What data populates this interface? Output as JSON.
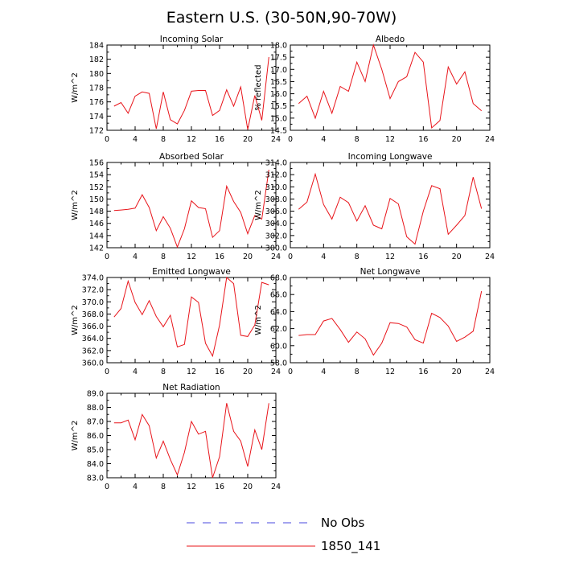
{
  "title": "Eastern U.S. (30-50N,90-70W)",
  "legend": [
    {
      "label": "No Obs",
      "color": "#4a4adf",
      "dash": true
    },
    {
      "label": "1850_141",
      "color": "#e8141a",
      "dash": false
    }
  ],
  "chart_data": [
    {
      "type": "line",
      "title": "Incoming Solar",
      "ylabel": "W/m^2",
      "xlim": [
        0,
        24
      ],
      "xticks": [
        0,
        4,
        8,
        12,
        16,
        20,
        24
      ],
      "ylim": [
        172,
        184
      ],
      "yticks": [
        172,
        174,
        176,
        178,
        180,
        182,
        184
      ],
      "ytick_labels": [
        "172",
        "174",
        "176",
        "178",
        "180",
        "182",
        "184"
      ],
      "x": [
        1,
        2,
        3,
        4,
        5,
        6,
        7,
        8,
        9,
        10,
        11,
        12,
        13,
        14,
        15,
        16,
        17,
        18,
        19,
        20,
        21,
        22,
        23
      ],
      "series": [
        {
          "name": "1850_141",
          "values": [
            175.4,
            175.9,
            174.4,
            176.8,
            177.4,
            177.2,
            172.2,
            177.4,
            173.5,
            172.9,
            174.8,
            177.5,
            177.6,
            177.6,
            174.1,
            174.8,
            177.7,
            175.4,
            178.1,
            172.1,
            176.9,
            173.4,
            182.3
          ]
        }
      ]
    },
    {
      "type": "line",
      "title": "Albedo",
      "ylabel": "% reflected",
      "xlim": [
        0,
        24
      ],
      "xticks": [
        0,
        4,
        8,
        12,
        16,
        20,
        24
      ],
      "ylim": [
        14.5,
        18.0
      ],
      "yticks": [
        14.5,
        15.0,
        15.5,
        16.0,
        16.5,
        17.0,
        17.5,
        18.0
      ],
      "ytick_labels": [
        "14.5",
        "15.0",
        "15.5",
        "16.0",
        "16.5",
        "17.0",
        "17.5",
        "18.0"
      ],
      "x": [
        1,
        2,
        3,
        4,
        5,
        6,
        7,
        8,
        9,
        10,
        11,
        12,
        13,
        14,
        15,
        16,
        17,
        18,
        19,
        20,
        21,
        22,
        23
      ],
      "series": [
        {
          "name": "1850_141",
          "values": [
            15.6,
            15.9,
            15.0,
            16.1,
            15.2,
            16.3,
            16.1,
            17.3,
            16.5,
            18.0,
            17.0,
            15.8,
            16.5,
            16.7,
            17.7,
            17.3,
            14.6,
            14.9,
            17.1,
            16.4,
            16.9,
            15.6,
            15.3
          ]
        }
      ]
    },
    {
      "type": "line",
      "title": "Absorbed Solar",
      "ylabel": "W/m^2",
      "xlim": [
        0,
        24
      ],
      "xticks": [
        0,
        4,
        8,
        12,
        16,
        20,
        24
      ],
      "ylim": [
        142,
        156
      ],
      "yticks": [
        142,
        144,
        146,
        148,
        150,
        152,
        154,
        156
      ],
      "ytick_labels": [
        "142",
        "144",
        "146",
        "148",
        "150",
        "152",
        "154",
        "156"
      ],
      "x": [
        1,
        2,
        3,
        4,
        5,
        6,
        7,
        8,
        9,
        10,
        11,
        12,
        13,
        14,
        15,
        16,
        17,
        18,
        19,
        20,
        21,
        22,
        23
      ],
      "series": [
        {
          "name": "1850_141",
          "values": [
            148.1,
            148.2,
            148.3,
            148.5,
            150.7,
            148.6,
            144.8,
            147.1,
            145.2,
            142.1,
            145.1,
            149.7,
            148.6,
            148.4,
            143.7,
            144.8,
            152.1,
            149.6,
            147.8,
            144.3,
            147.3,
            146.7,
            154.8
          ]
        }
      ]
    },
    {
      "type": "line",
      "title": "Incoming Longwave",
      "ylabel": "W/m^2",
      "xlim": [
        0,
        24
      ],
      "xticks": [
        0,
        4,
        8,
        12,
        16,
        20,
        24
      ],
      "ylim": [
        300,
        314
      ],
      "yticks": [
        300,
        302,
        304,
        306,
        308,
        310,
        312,
        314
      ],
      "ytick_labels": [
        "300.0",
        "302.0",
        "304.0",
        "306.0",
        "308.0",
        "310.0",
        "312.0",
        "314.0"
      ],
      "x": [
        1,
        2,
        3,
        4,
        5,
        6,
        7,
        8,
        9,
        10,
        11,
        12,
        13,
        14,
        15,
        16,
        17,
        18,
        19,
        20,
        21,
        22,
        23
      ],
      "series": [
        {
          "name": "1850_141",
          "values": [
            306.3,
            307.5,
            312.1,
            307.1,
            304.7,
            308.3,
            307.4,
            304.4,
            306.9,
            303.7,
            303.1,
            308.1,
            307.2,
            301.8,
            300.6,
            306.0,
            310.2,
            309.7,
            302.2,
            303.7,
            305.3,
            311.6,
            306.4
          ]
        }
      ]
    },
    {
      "type": "line",
      "title": "Emitted Longwave",
      "ylabel": "W/m^2",
      "xlim": [
        0,
        24
      ],
      "xticks": [
        0,
        4,
        8,
        12,
        16,
        20,
        24
      ],
      "ylim": [
        360,
        374
      ],
      "yticks": [
        360,
        362,
        364,
        366,
        368,
        370,
        372,
        374
      ],
      "ytick_labels": [
        "360.0",
        "362.0",
        "364.0",
        "366.0",
        "368.0",
        "370.0",
        "372.0",
        "374.0"
      ],
      "x": [
        1,
        2,
        3,
        4,
        5,
        6,
        7,
        8,
        9,
        10,
        11,
        12,
        13,
        14,
        15,
        16,
        17,
        18,
        19,
        20,
        21,
        22,
        23
      ],
      "series": [
        {
          "name": "1850_141",
          "values": [
            367.5,
            368.9,
            373.4,
            369.9,
            367.9,
            370.2,
            367.6,
            365.9,
            367.8,
            362.6,
            363.0,
            370.8,
            369.9,
            363.2,
            361.1,
            366.2,
            374.0,
            373.0,
            364.5,
            364.3,
            366.2,
            373.2,
            372.8
          ]
        }
      ]
    },
    {
      "type": "line",
      "title": "Net Longwave",
      "ylabel": "W/m^2",
      "xlim": [
        0,
        24
      ],
      "xticks": [
        0,
        4,
        8,
        12,
        16,
        20,
        24
      ],
      "ylim": [
        58,
        68
      ],
      "yticks": [
        58,
        60,
        62,
        64,
        66,
        68
      ],
      "ytick_labels": [
        "58.0",
        "60.0",
        "62.0",
        "64.0",
        "66.0",
        "68.0"
      ],
      "x": [
        1,
        2,
        3,
        4,
        5,
        6,
        7,
        8,
        9,
        10,
        11,
        12,
        13,
        14,
        15,
        16,
        17,
        18,
        19,
        20,
        21,
        22,
        23
      ],
      "series": [
        {
          "name": "1850_141",
          "values": [
            61.2,
            61.3,
            61.3,
            62.9,
            63.2,
            61.9,
            60.4,
            61.6,
            60.8,
            58.9,
            60.3,
            62.7,
            62.6,
            62.2,
            60.7,
            60.3,
            63.8,
            63.3,
            62.3,
            60.5,
            61.0,
            61.7,
            66.4
          ]
        }
      ]
    },
    {
      "type": "line",
      "title": "Net Radiation",
      "ylabel": "W/m^2",
      "xlim": [
        0,
        24
      ],
      "xticks": [
        0,
        4,
        8,
        12,
        16,
        20,
        24
      ],
      "ylim": [
        83,
        89
      ],
      "yticks": [
        83,
        84,
        85,
        86,
        87,
        88,
        89
      ],
      "ytick_labels": [
        "83.0",
        "84.0",
        "85.0",
        "86.0",
        "87.0",
        "88.0",
        "89.0"
      ],
      "x": [
        1,
        2,
        3,
        4,
        5,
        6,
        7,
        8,
        9,
        10,
        11,
        12,
        13,
        14,
        15,
        16,
        17,
        18,
        19,
        20,
        21,
        22,
        23
      ],
      "series": [
        {
          "name": "1850_141",
          "values": [
            86.9,
            86.9,
            87.1,
            85.7,
            87.5,
            86.7,
            84.4,
            85.6,
            84.3,
            83.2,
            84.8,
            87.0,
            86.1,
            86.3,
            83.0,
            84.5,
            88.3,
            86.3,
            85.6,
            83.8,
            86.4,
            85.0,
            88.3
          ]
        }
      ]
    }
  ]
}
